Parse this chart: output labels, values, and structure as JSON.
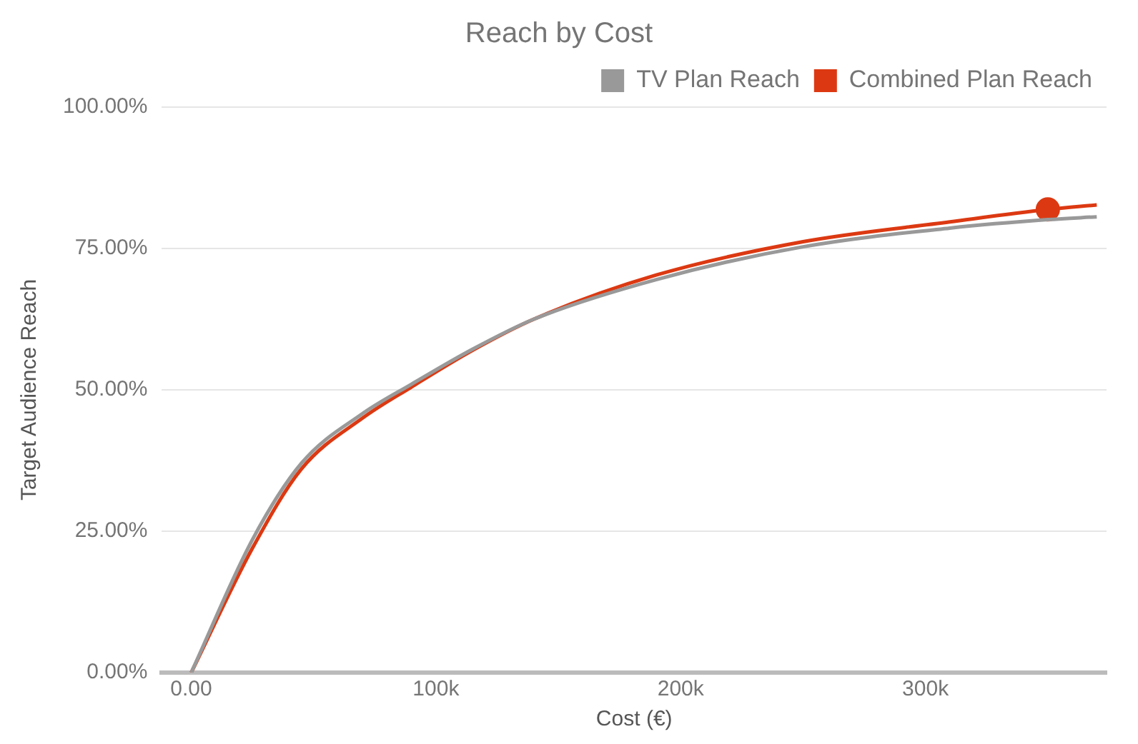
{
  "chart_data": {
    "type": "line",
    "title": "Reach by Cost",
    "xlabel": "Cost (€)",
    "ylabel": "Target Audience Reach",
    "x": [
      0,
      25000,
      45000,
      70000,
      90000,
      115000,
      140000,
      190000,
      250000,
      310000,
      350000,
      370000
    ],
    "series": [
      {
        "name": "TV Plan Reach",
        "color": "#999999",
        "values": [
          0,
          23.5,
          37,
          45.8,
          51,
          57.2,
          62.5,
          69.5,
          75.3,
          78.6,
          80.1,
          80.6
        ]
      },
      {
        "name": "Combined Plan Reach",
        "color": "#dc3912",
        "values": [
          0,
          22,
          36,
          45,
          50.5,
          57,
          62.5,
          70.3,
          76.2,
          79.7,
          81.9,
          82.7
        ]
      },
      {
        "type": "scatter",
        "color": "#dc3912",
        "x": [
          350000
        ],
        "values": [
          81.9
        ]
      }
    ],
    "xlim": [
      -12000,
      374000
    ],
    "ylim": [
      0,
      100
    ],
    "xticks": [
      {
        "value": 0,
        "label": "0.00"
      },
      {
        "value": 100000,
        "label": "100k"
      },
      {
        "value": 200000,
        "label": "200k"
      },
      {
        "value": 300000,
        "label": "300k"
      }
    ],
    "yticks": [
      {
        "value": 0,
        "label": "0.00%"
      },
      {
        "value": 25,
        "label": "25.00%"
      },
      {
        "value": 50,
        "label": "50.00%"
      },
      {
        "value": 75,
        "label": "75.00%"
      },
      {
        "value": 100,
        "label": "100.00%"
      }
    ],
    "grid": "y",
    "legend": "top"
  }
}
